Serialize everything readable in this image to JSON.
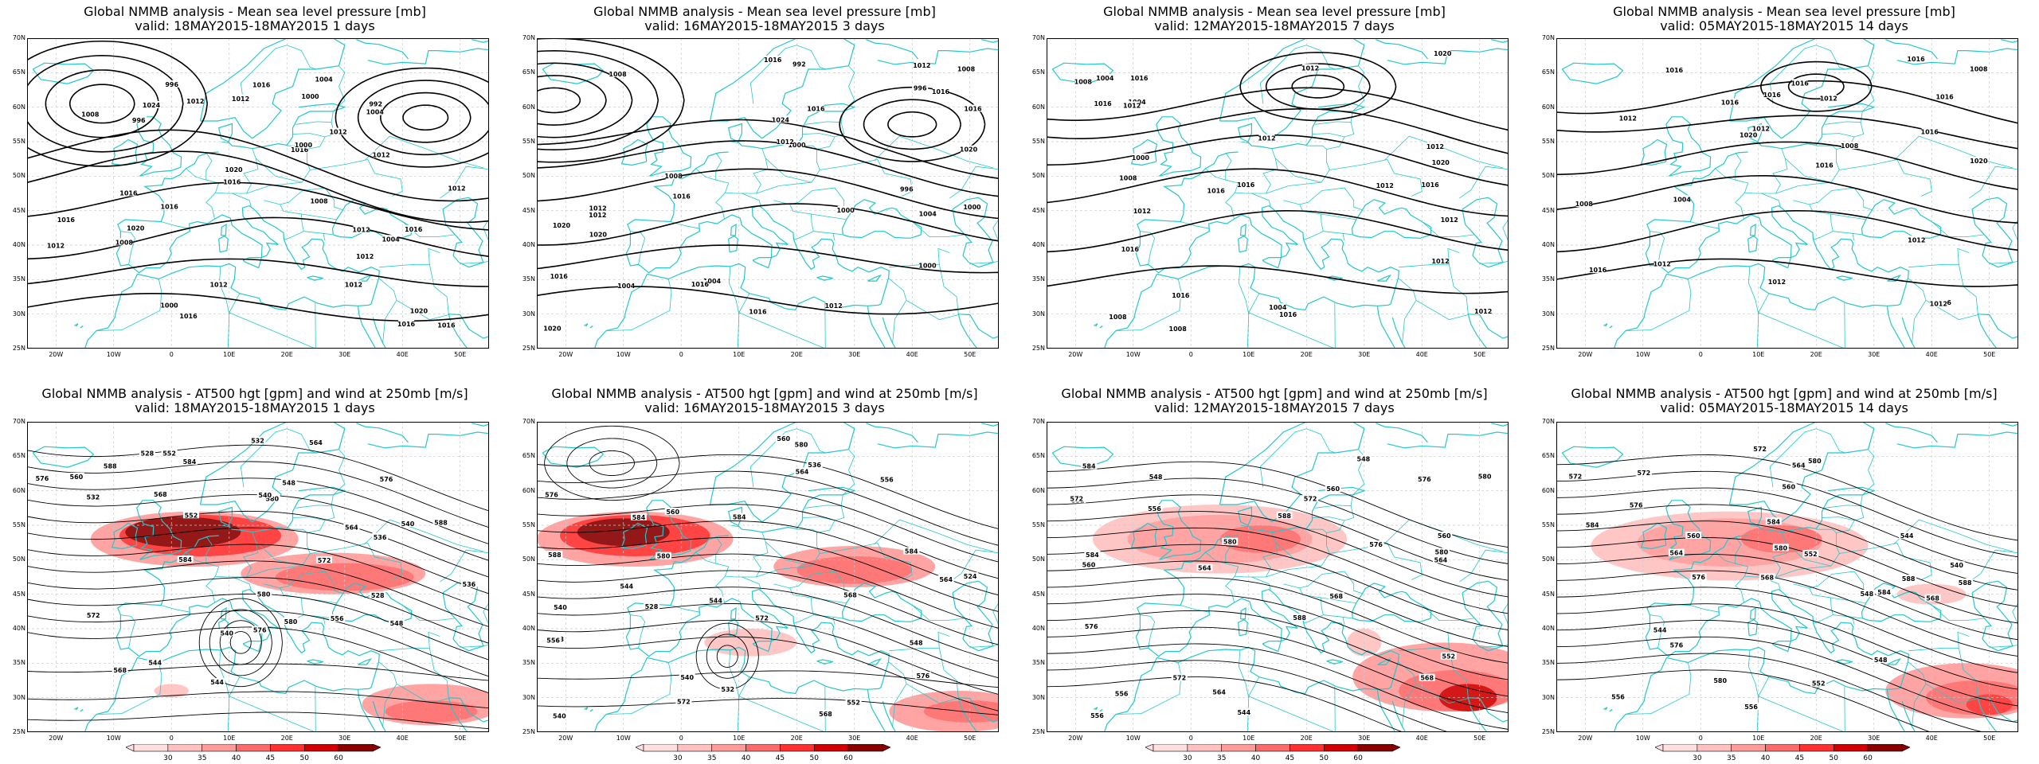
{
  "panels": [
    {
      "id": "slp-1d",
      "title": "Global NMMB analysis - Mean sea level pressure [mb]",
      "subtitle": "valid: 18MAY2015-18MAY2015  1 days"
    },
    {
      "id": "slp-3d",
      "title": "Global NMMB analysis - Mean sea level pressure [mb]",
      "subtitle": "valid: 16MAY2015-18MAY2015  3 days"
    },
    {
      "id": "slp-7d",
      "title": "Global NMMB analysis - Mean sea level pressure [mb]",
      "subtitle": "valid: 12MAY2015-18MAY2015  7 days"
    },
    {
      "id": "slp-14d",
      "title": "Global NMMB analysis - Mean sea level pressure [mb]",
      "subtitle": "valid: 05MAY2015-18MAY2015  14 days"
    },
    {
      "id": "z500-1d",
      "title": "Global NMMB analysis - AT500 hgt [gpm] and wind at 250mb [m/s]",
      "subtitle": "valid: 18MAY2015-18MAY2015  1 days"
    },
    {
      "id": "z500-3d",
      "title": "Global NMMB analysis - AT500 hgt [gpm] and wind at 250mb [m/s]",
      "subtitle": "valid: 16MAY2015-18MAY2015  3 days"
    },
    {
      "id": "z500-7d",
      "title": "Global NMMB analysis - AT500 hgt [gpm] and wind at 250mb [m/s]",
      "subtitle": "valid: 12MAY2015-18MAY2015  7 days"
    },
    {
      "id": "z500-14d",
      "title": "Global NMMB analysis - AT500 hgt [gpm] and wind at 250mb [m/s]",
      "subtitle": "valid: 05MAY2015-18MAY2015  14 days"
    }
  ],
  "axes": {
    "lat_labels": [
      "70N",
      "65N",
      "60N",
      "55N",
      "50N",
      "45N",
      "40N",
      "35N",
      "30N",
      "25N"
    ],
    "lon_labels": [
      "20W",
      "10W",
      "0",
      "10E",
      "20E",
      "30E",
      "40E",
      "50E"
    ]
  },
  "colorbar": {
    "ticks": [
      "30",
      "35",
      "40",
      "45",
      "50",
      "60"
    ],
    "colors": [
      "#ffe0e0",
      "#ffc0c0",
      "#ff9a9a",
      "#ff6a6a",
      "#ff3030",
      "#d00000",
      "#8a0000"
    ]
  },
  "colors": {
    "coast": "#22c8cc",
    "contour": "#000000",
    "jet": "#e00000",
    "grid": "#c8c8c8"
  },
  "contour_labels": {
    "slp-1d": [
      "1004",
      "1000",
      "996",
      "1008",
      "1004",
      "1000",
      "1012",
      "1016",
      "1020",
      "1024",
      "1008",
      "1012",
      "1016",
      "1016",
      "1012",
      "1016",
      "1016",
      "1020",
      "1012",
      "1016",
      "1004",
      "1000",
      "996",
      "992",
      "1008",
      "1012",
      "1016",
      "1020",
      "1016",
      "1012",
      "1012",
      "1016",
      "1012",
      "1012",
      "1016",
      "1012"
    ],
    "slp-3d": [
      "1012",
      "1008",
      "1004",
      "1000",
      "996",
      "992",
      "1000",
      "1004",
      "1008",
      "1012",
      "1016",
      "1020",
      "1012",
      "1016",
      "1016",
      "1016",
      "1020",
      "1024",
      "1020",
      "1012",
      "1016",
      "1012",
      "1016",
      "1008",
      "1004",
      "1000",
      "996",
      "1000",
      "1020",
      "1016",
      "1016"
    ],
    "slp-7d": [
      "1012",
      "1008",
      "1004",
      "1008",
      "1012",
      "1016",
      "1004",
      "1008",
      "1012",
      "1012",
      "1016",
      "1020",
      "1012",
      "1016",
      "1020",
      "1016",
      "1016",
      "1012",
      "1016",
      "1016",
      "1012",
      "1012",
      "1012",
      "1008",
      "1004",
      "1000",
      "1016"
    ],
    "slp-14d": [
      "1008",
      "1004",
      "1012",
      "1008",
      "1008",
      "1012",
      "1016",
      "1020",
      "1016",
      "1016",
      "1012",
      "1012",
      "1016",
      "1016",
      "1012",
      "1016",
      "1012",
      "1016",
      "1016",
      "1012",
      "1016",
      "1020",
      "1016"
    ],
    "z500-1d": [
      "532",
      "528",
      "528",
      "532",
      "536",
      "540",
      "544",
      "548",
      "552",
      "556",
      "560",
      "564",
      "568",
      "572",
      "576",
      "580",
      "544",
      "540",
      "536",
      "540",
      "548",
      "552",
      "568",
      "576",
      "580",
      "564",
      "572",
      "576",
      "580",
      "584",
      "584",
      "588",
      "588"
    ],
    "z500-3d": [
      "524",
      "528",
      "532",
      "536",
      "540",
      "544",
      "548",
      "552",
      "556",
      "560",
      "564",
      "568",
      "572",
      "576",
      "580",
      "584",
      "540",
      "544",
      "540",
      "548",
      "556",
      "560",
      "564",
      "568",
      "572",
      "576",
      "580",
      "584",
      "588",
      "584"
    ],
    "z500-7d": [
      "544",
      "548",
      "552",
      "556",
      "560",
      "564",
      "568",
      "572",
      "576",
      "580",
      "584",
      "588",
      "548",
      "552",
      "556",
      "560",
      "564",
      "568",
      "572",
      "576",
      "580",
      "556",
      "560",
      "564",
      "572",
      "576",
      "580",
      "584",
      "588"
    ],
    "z500-14d": [
      "540",
      "544",
      "548",
      "552",
      "556",
      "560",
      "564",
      "568",
      "572",
      "576",
      "580",
      "584",
      "588",
      "544",
      "548",
      "552",
      "556",
      "560",
      "564",
      "568",
      "572",
      "576",
      "580",
      "584",
      "588",
      "576",
      "580",
      "584",
      "572"
    ]
  }
}
